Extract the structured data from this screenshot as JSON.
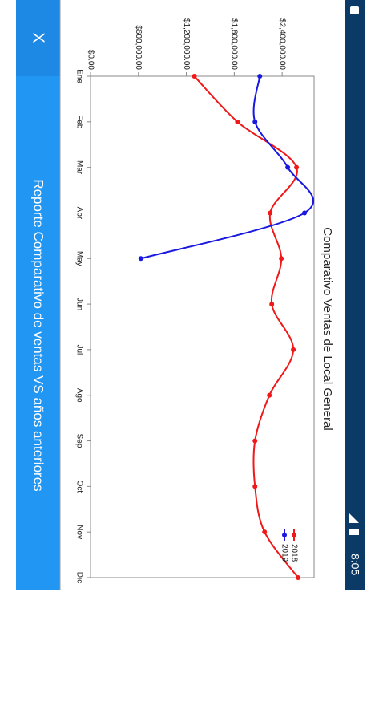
{
  "status_bar": {
    "time": "8:05"
  },
  "app_bar": {
    "close": "X",
    "title": "Reporte Comparativo de ventas VS años anteriores"
  },
  "chart_data": {
    "type": "line",
    "title": "Comparativo Ventas de Local General",
    "categories": [
      "Ene",
      "Feb",
      "Mar",
      "Abr",
      "May",
      "Jun",
      "Jul",
      "Ago",
      "Sep",
      "Oct",
      "Nov",
      "Dic"
    ],
    "series": [
      {
        "name": "2018",
        "color": "#f01818",
        "values": [
          1300000,
          1840000,
          2580000,
          2250000,
          2390000,
          2270000,
          2540000,
          2240000,
          2060000,
          2060000,
          2180000,
          2600000
        ]
      },
      {
        "name": "2019",
        "color": "#1818e0",
        "values": [
          2120000,
          2060000,
          2470000,
          2680000,
          630000,
          null,
          null,
          null,
          null,
          null,
          null,
          null
        ]
      }
    ],
    "ylim": [
      0,
      2800000
    ],
    "yticks": [
      {
        "value": 0,
        "label": "$0.00"
      },
      {
        "value": 600000,
        "label": "$600,000.00"
      },
      {
        "value": 1200000,
        "label": "$1,200,000.00"
      },
      {
        "value": 1800000,
        "label": "$1,800,000.00"
      },
      {
        "value": 2400000,
        "label": "$2,400,000.00"
      }
    ],
    "legend": "top-right",
    "smooth": true
  }
}
